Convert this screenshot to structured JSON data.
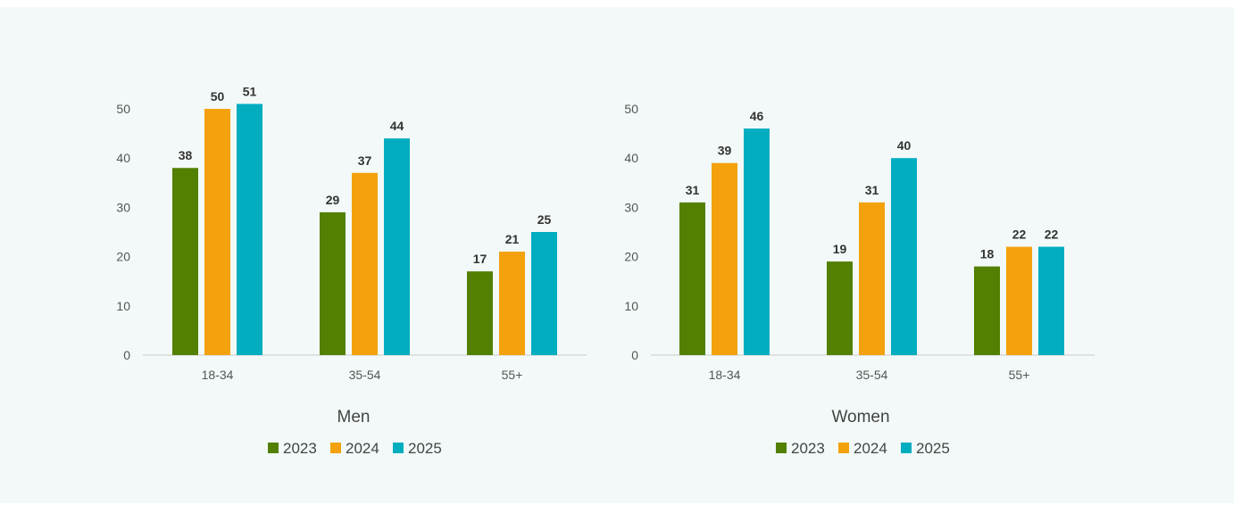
{
  "chart_data": [
    {
      "type": "bar",
      "title": "Men",
      "categories": [
        "18-34",
        "35-54",
        "55+"
      ],
      "series": [
        {
          "name": "2023",
          "color": "#538000",
          "values": [
            38,
            29,
            17
          ]
        },
        {
          "name": "2024",
          "color": "#f3a20d",
          "values": [
            50,
            37,
            21
          ]
        },
        {
          "name": "2025",
          "color": "#02adc0",
          "values": [
            51,
            44,
            25
          ]
        }
      ],
      "ylim": [
        0,
        50
      ],
      "yticks": [
        0,
        10,
        20,
        30,
        40,
        50
      ],
      "grid": false,
      "legend": "bottom"
    },
    {
      "type": "bar",
      "title": "Women",
      "categories": [
        "18-34",
        "35-54",
        "55+"
      ],
      "series": [
        {
          "name": "2023",
          "color": "#538000",
          "values": [
            31,
            19,
            18
          ]
        },
        {
          "name": "2024",
          "color": "#f3a20d",
          "values": [
            39,
            31,
            22
          ]
        },
        {
          "name": "2025",
          "color": "#02adc0",
          "values": [
            46,
            40,
            22
          ]
        }
      ],
      "ylim": [
        0,
        50
      ],
      "yticks": [
        0,
        10,
        20,
        30,
        40,
        50
      ],
      "grid": false,
      "legend": "bottom"
    }
  ]
}
